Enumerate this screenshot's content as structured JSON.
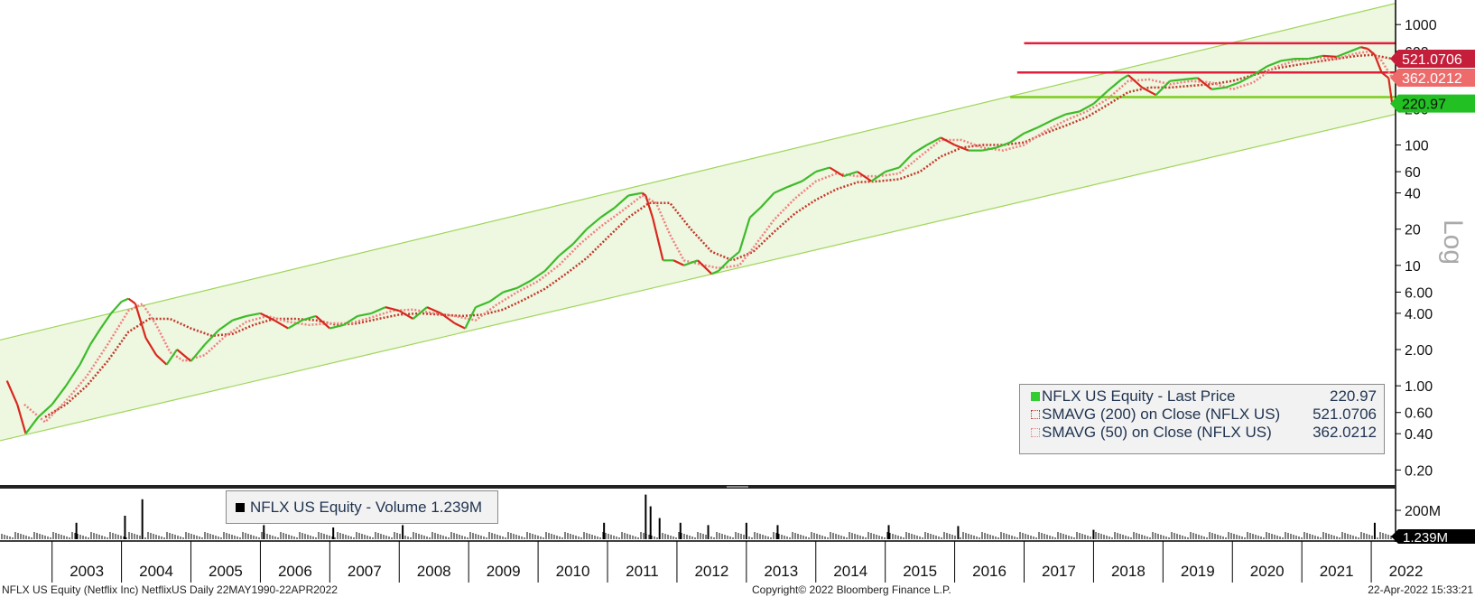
{
  "chart_data": {
    "type": "line",
    "scale": "log",
    "ticker": "NFLX US Equity",
    "y_ticks": [
      "1000",
      "600",
      "200",
      "100",
      "60",
      "40",
      "20",
      "10",
      "6.00",
      "4.00",
      "2.00",
      "1.00",
      "0.60",
      "0.40",
      "0.20"
    ],
    "y_tick_values": [
      1000,
      600,
      200,
      100,
      60,
      40,
      20,
      10,
      6,
      4,
      2,
      1,
      0.6,
      0.4,
      0.2
    ],
    "ylim": [
      0.15,
      1600
    ],
    "xlim": [
      2002.25,
      2022.35
    ],
    "axis_note": "Log",
    "x_ticks": [
      "2003",
      "2004",
      "2005",
      "2006",
      "2007",
      "2008",
      "2009",
      "2010",
      "2011",
      "2012",
      "2013",
      "2014",
      "2015",
      "2016",
      "2017",
      "2018",
      "2019",
      "2020",
      "2021",
      "2022"
    ],
    "price_series": {
      "name": "NFLX US Equity - Last Price",
      "color": "#33cc33",
      "x": [
        2002.35,
        2002.5,
        2002.62,
        2002.8,
        2003.0,
        2003.2,
        2003.4,
        2003.55,
        2003.7,
        2003.85,
        2004.0,
        2004.1,
        2004.2,
        2004.35,
        2004.5,
        2004.65,
        2004.8,
        2005.0,
        2005.2,
        2005.4,
        2005.6,
        2005.8,
        2006.0,
        2006.2,
        2006.4,
        2006.6,
        2006.8,
        2007.0,
        2007.2,
        2007.4,
        2007.6,
        2007.8,
        2008.0,
        2008.2,
        2008.4,
        2008.6,
        2008.8,
        2008.95,
        2009.1,
        2009.3,
        2009.5,
        2009.7,
        2009.9,
        2010.1,
        2010.3,
        2010.5,
        2010.7,
        2010.9,
        2011.1,
        2011.3,
        2011.5,
        2011.55,
        2011.65,
        2011.8,
        2011.95,
        2012.1,
        2012.3,
        2012.5,
        2012.6,
        2012.75,
        2012.9,
        2013.05,
        2013.2,
        2013.4,
        2013.6,
        2013.8,
        2014.0,
        2014.2,
        2014.4,
        2014.6,
        2014.8,
        2015.0,
        2015.2,
        2015.4,
        2015.6,
        2015.8,
        2016.0,
        2016.2,
        2016.4,
        2016.6,
        2016.8,
        2017.0,
        2017.2,
        2017.4,
        2017.6,
        2017.8,
        2018.0,
        2018.2,
        2018.4,
        2018.5,
        2018.7,
        2018.9,
        2019.1,
        2019.3,
        2019.5,
        2019.7,
        2019.9,
        2020.1,
        2020.3,
        2020.5,
        2020.7,
        2020.9,
        2021.1,
        2021.3,
        2021.5,
        2021.7,
        2021.85,
        2021.95,
        2022.05,
        2022.15,
        2022.25,
        2022.3
      ],
      "values": [
        1.1,
        0.7,
        0.4,
        0.55,
        0.7,
        1.0,
        1.5,
        2.2,
        3.0,
        4.0,
        5.0,
        5.3,
        4.8,
        2.5,
        1.8,
        1.5,
        2.0,
        1.6,
        2.2,
        2.9,
        3.5,
        3.8,
        4.0,
        3.5,
        3.0,
        3.5,
        3.8,
        3.0,
        3.2,
        3.8,
        4.0,
        4.5,
        4.2,
        3.6,
        4.5,
        4.0,
        3.3,
        3.0,
        4.5,
        5.0,
        6.0,
        6.5,
        7.5,
        9.0,
        12,
        15,
        20,
        25,
        30,
        38,
        40,
        38,
        25,
        11,
        11,
        10,
        11,
        8.5,
        9,
        11,
        13,
        25,
        30,
        40,
        45,
        50,
        60,
        65,
        55,
        60,
        50,
        60,
        65,
        85,
        100,
        115,
        100,
        90,
        90,
        95,
        105,
        125,
        140,
        160,
        180,
        190,
        220,
        280,
        350,
        380,
        300,
        260,
        340,
        350,
        360,
        290,
        300,
        330,
        380,
        450,
        500,
        520,
        520,
        550,
        540,
        600,
        650,
        630,
        560,
        400,
        360,
        220.97
      ]
    },
    "sma200": {
      "name": "SMAVG (200)  on Close (NFLX US)",
      "color": "#c0392b",
      "x": [
        2002.9,
        2003.2,
        2003.5,
        2003.8,
        2004.1,
        2004.4,
        2004.7,
        2005.0,
        2005.3,
        2005.6,
        2005.9,
        2006.2,
        2006.5,
        2006.8,
        2007.1,
        2007.4,
        2007.7,
        2008.0,
        2008.3,
        2008.6,
        2008.9,
        2009.2,
        2009.5,
        2009.8,
        2010.1,
        2010.4,
        2010.7,
        2011.0,
        2011.3,
        2011.6,
        2011.9,
        2012.2,
        2012.5,
        2012.8,
        2013.1,
        2013.4,
        2013.7,
        2014.0,
        2014.3,
        2014.6,
        2014.9,
        2015.2,
        2015.5,
        2015.8,
        2016.1,
        2016.4,
        2016.7,
        2017.0,
        2017.3,
        2017.6,
        2017.9,
        2018.2,
        2018.5,
        2018.8,
        2019.1,
        2019.4,
        2019.7,
        2020.0,
        2020.3,
        2020.6,
        2020.9,
        2021.2,
        2021.5,
        2021.8,
        2022.0,
        2022.3
      ],
      "values": [
        0.55,
        0.7,
        1.0,
        1.6,
        2.8,
        3.6,
        3.6,
        3.0,
        2.6,
        2.7,
        3.2,
        3.6,
        3.6,
        3.5,
        3.2,
        3.3,
        3.6,
        3.9,
        4.0,
        3.9,
        3.8,
        3.9,
        4.3,
        5.2,
        6.4,
        8.5,
        11.5,
        17,
        25,
        33,
        33,
        20,
        13,
        11,
        13,
        19,
        27,
        35,
        43,
        49,
        50,
        52,
        60,
        80,
        95,
        100,
        100,
        105,
        125,
        145,
        170,
        215,
        275,
        300,
        300,
        310,
        320,
        340,
        380,
        430,
        460,
        490,
        520,
        550,
        560,
        521.07
      ]
    },
    "sma50": {
      "name": "SMAVG (50)  on Close (NFLX US)",
      "color": "#f08080",
      "x": [
        2002.6,
        2002.9,
        2003.2,
        2003.5,
        2003.8,
        2004.1,
        2004.3,
        2004.5,
        2004.7,
        2004.9,
        2005.2,
        2005.5,
        2005.8,
        2006.1,
        2006.4,
        2006.7,
        2007.0,
        2007.3,
        2007.6,
        2007.9,
        2008.2,
        2008.5,
        2008.8,
        2009.1,
        2009.4,
        2009.7,
        2010.0,
        2010.3,
        2010.6,
        2010.9,
        2011.2,
        2011.5,
        2011.7,
        2011.9,
        2012.1,
        2012.4,
        2012.6,
        2012.9,
        2013.1,
        2013.4,
        2013.7,
        2014.0,
        2014.3,
        2014.6,
        2014.9,
        2015.2,
        2015.5,
        2015.8,
        2016.1,
        2016.4,
        2016.7,
        2017.0,
        2017.3,
        2017.6,
        2017.9,
        2018.2,
        2018.5,
        2018.8,
        2019.1,
        2019.4,
        2019.7,
        2020.0,
        2020.3,
        2020.6,
        2020.9,
        2021.2,
        2021.5,
        2021.8,
        2022.0,
        2022.15,
        2022.3
      ],
      "values": [
        0.7,
        0.5,
        0.75,
        1.2,
        2.2,
        4.2,
        4.8,
        3.2,
        1.9,
        1.6,
        1.8,
        2.6,
        3.4,
        3.8,
        3.4,
        3.2,
        3.3,
        3.3,
        3.7,
        4.2,
        4.3,
        4.0,
        3.8,
        3.5,
        4.7,
        6.0,
        7.4,
        10,
        15,
        21,
        28,
        38,
        33,
        18,
        11,
        10,
        9.5,
        10,
        14,
        24,
        36,
        50,
        58,
        55,
        55,
        58,
        80,
        110,
        110,
        95,
        90,
        100,
        130,
        160,
        190,
        240,
        340,
        350,
        320,
        340,
        330,
        290,
        330,
        440,
        500,
        530,
        520,
        580,
        600,
        500,
        362.02
      ]
    },
    "channel": {
      "upper": [
        [
          2002.25,
          2.4
        ],
        [
          2022.35,
          1500
        ]
      ],
      "lower": [
        [
          2002.25,
          0.35
        ],
        [
          2022.35,
          180
        ]
      ]
    },
    "h_lines": [
      {
        "value": 700,
        "x_start": 2017.0,
        "color": "#e31d3c"
      },
      {
        "value": 400,
        "x_start": 2016.9,
        "color": "#e31d3c"
      },
      {
        "value": 250,
        "x_start": 2016.8,
        "color": "#7ccc1a"
      }
    ],
    "value_tags": [
      {
        "label": "521.0706",
        "value": 521.07,
        "bg": "#c41e3a"
      },
      {
        "label": "362.0212",
        "value": 362.02,
        "bg": "#ee6b6b"
      },
      {
        "label": "220.97",
        "value": 220.97,
        "bg": "#22c022"
      }
    ],
    "volume": {
      "name": "NFLX US Equity - Volume",
      "last_value_label": "1.239M",
      "y_tick": "200M",
      "last_tag": "1.239M",
      "spikes": [
        [
          2004.3,
          0.85
        ],
        [
          2004.05,
          0.5
        ],
        [
          2003.35,
          0.35
        ],
        [
          2006.05,
          0.3
        ],
        [
          2007.05,
          0.25
        ],
        [
          2008.05,
          0.3
        ],
        [
          2010.95,
          0.35
        ],
        [
          2011.55,
          0.95
        ],
        [
          2011.62,
          0.7
        ],
        [
          2011.75,
          0.45
        ],
        [
          2012.05,
          0.35
        ],
        [
          2012.45,
          0.3
        ],
        [
          2013.0,
          0.35
        ],
        [
          2013.45,
          0.3
        ],
        [
          2015.05,
          0.3
        ],
        [
          2016.05,
          0.28
        ],
        [
          2018.0,
          0.2
        ],
        [
          2022.05,
          0.35
        ]
      ]
    },
    "legend": {
      "rows": [
        {
          "label": "NFLX US Equity - Last Price",
          "value": "220.97"
        },
        {
          "label": "SMAVG (200)  on Close (NFLX US)",
          "value": "521.0706"
        },
        {
          "label": "SMAVG (50)  on Close (NFLX US)",
          "value": "362.0212"
        }
      ]
    }
  },
  "footer": {
    "left": "NFLX US Equity (Netflix Inc) NetflixUS  Daily 22MAY1990-22APR2022",
    "center": "Copyright© 2022 Bloomberg Finance L.P.",
    "right": "22-Apr-2022 15:33:21"
  }
}
